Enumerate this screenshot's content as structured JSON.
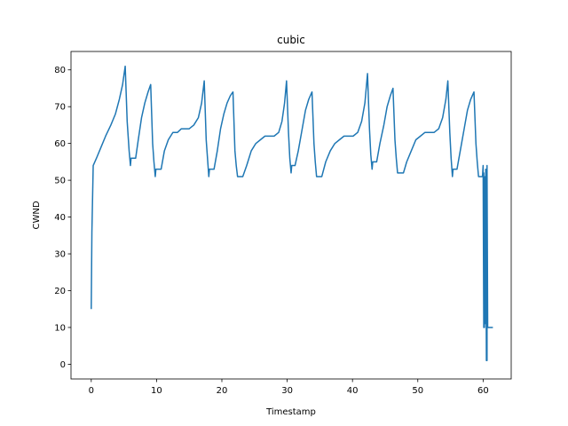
{
  "chart_data": {
    "type": "line",
    "title": "cubic",
    "xlabel": "Timestamp",
    "ylabel": "CWND",
    "xlim": [
      -3.1,
      64.3
    ],
    "ylim": [
      -4,
      85
    ],
    "xticks": [
      0,
      10,
      20,
      30,
      40,
      50,
      60
    ],
    "yticks": [
      0,
      10,
      20,
      30,
      40,
      50,
      60,
      70,
      80
    ],
    "grid": false,
    "line_color": "#1f77b4",
    "series": [
      {
        "points": [
          [
            0.0,
            15
          ],
          [
            0.1,
            36
          ],
          [
            0.3,
            54
          ],
          [
            0.8,
            56
          ],
          [
            1.5,
            59
          ],
          [
            2.2,
            62
          ],
          [
            3.0,
            65
          ],
          [
            3.7,
            68
          ],
          [
            4.3,
            72
          ],
          [
            4.8,
            76
          ],
          [
            5.2,
            81
          ],
          [
            5.5,
            66
          ],
          [
            5.8,
            58
          ],
          [
            6.0,
            54
          ],
          [
            6.1,
            56
          ],
          [
            6.8,
            56
          ],
          [
            7.2,
            61
          ],
          [
            7.7,
            67
          ],
          [
            8.2,
            71
          ],
          [
            8.7,
            74
          ],
          [
            9.1,
            76
          ],
          [
            9.4,
            60
          ],
          [
            9.6,
            55
          ],
          [
            9.8,
            51
          ],
          [
            9.9,
            53
          ],
          [
            10.7,
            53
          ],
          [
            11.2,
            58
          ],
          [
            11.8,
            61
          ],
          [
            12.5,
            63
          ],
          [
            13.2,
            63
          ],
          [
            13.8,
            64
          ],
          [
            15.0,
            64
          ],
          [
            15.7,
            65
          ],
          [
            16.4,
            67
          ],
          [
            16.9,
            71
          ],
          [
            17.3,
            77
          ],
          [
            17.6,
            61
          ],
          [
            17.8,
            56
          ],
          [
            18.0,
            51
          ],
          [
            18.1,
            53
          ],
          [
            18.8,
            53
          ],
          [
            19.3,
            58
          ],
          [
            19.8,
            64
          ],
          [
            20.3,
            68
          ],
          [
            20.8,
            71
          ],
          [
            21.3,
            73
          ],
          [
            21.7,
            74
          ],
          [
            22.0,
            58
          ],
          [
            22.2,
            54
          ],
          [
            22.4,
            51
          ],
          [
            23.2,
            51
          ],
          [
            23.8,
            54
          ],
          [
            24.5,
            58
          ],
          [
            25.2,
            60
          ],
          [
            25.9,
            61
          ],
          [
            26.6,
            62
          ],
          [
            28.0,
            62
          ],
          [
            28.7,
            63
          ],
          [
            29.2,
            66
          ],
          [
            29.6,
            71
          ],
          [
            29.9,
            77
          ],
          [
            30.2,
            63
          ],
          [
            30.4,
            56
          ],
          [
            30.6,
            52
          ],
          [
            30.7,
            54
          ],
          [
            31.2,
            54
          ],
          [
            31.7,
            58
          ],
          [
            32.3,
            64
          ],
          [
            32.8,
            69
          ],
          [
            33.3,
            72
          ],
          [
            33.8,
            74
          ],
          [
            34.1,
            60
          ],
          [
            34.3,
            55
          ],
          [
            34.5,
            51
          ],
          [
            35.3,
            51
          ],
          [
            35.9,
            55
          ],
          [
            36.6,
            58
          ],
          [
            37.3,
            60
          ],
          [
            38.0,
            61
          ],
          [
            38.7,
            62
          ],
          [
            40.1,
            62
          ],
          [
            40.8,
            63
          ],
          [
            41.4,
            66
          ],
          [
            41.9,
            71
          ],
          [
            42.3,
            79
          ],
          [
            42.6,
            64
          ],
          [
            42.8,
            57
          ],
          [
            43.0,
            53
          ],
          [
            43.1,
            55
          ],
          [
            43.7,
            55
          ],
          [
            44.2,
            60
          ],
          [
            44.8,
            65
          ],
          [
            45.3,
            70
          ],
          [
            45.8,
            73
          ],
          [
            46.2,
            75
          ],
          [
            46.5,
            61
          ],
          [
            46.7,
            56
          ],
          [
            46.9,
            52
          ],
          [
            47.8,
            52
          ],
          [
            48.3,
            55
          ],
          [
            49.0,
            58
          ],
          [
            49.7,
            61
          ],
          [
            50.4,
            62
          ],
          [
            51.1,
            63
          ],
          [
            52.5,
            63
          ],
          [
            53.2,
            64
          ],
          [
            53.8,
            67
          ],
          [
            54.3,
            72
          ],
          [
            54.6,
            77
          ],
          [
            54.9,
            63
          ],
          [
            55.1,
            56
          ],
          [
            55.3,
            51
          ],
          [
            55.4,
            53
          ],
          [
            56.0,
            53
          ],
          [
            56.5,
            58
          ],
          [
            57.1,
            64
          ],
          [
            57.6,
            69
          ],
          [
            58.1,
            72
          ],
          [
            58.6,
            74
          ],
          [
            58.9,
            60
          ],
          [
            59.1,
            55
          ],
          [
            59.3,
            51
          ],
          [
            59.9,
            51
          ],
          [
            60.0,
            54
          ],
          [
            60.1,
            10
          ],
          [
            60.1,
            52
          ],
          [
            60.2,
            10
          ],
          [
            60.2,
            50
          ],
          [
            60.3,
            11
          ],
          [
            60.3,
            51
          ],
          [
            60.4,
            12
          ],
          [
            60.4,
            53
          ],
          [
            60.5,
            1
          ],
          [
            60.5,
            52
          ],
          [
            60.6,
            1
          ],
          [
            60.6,
            54
          ],
          [
            60.7,
            10
          ],
          [
            61.0,
            10
          ],
          [
            61.5,
            10
          ]
        ]
      }
    ]
  }
}
